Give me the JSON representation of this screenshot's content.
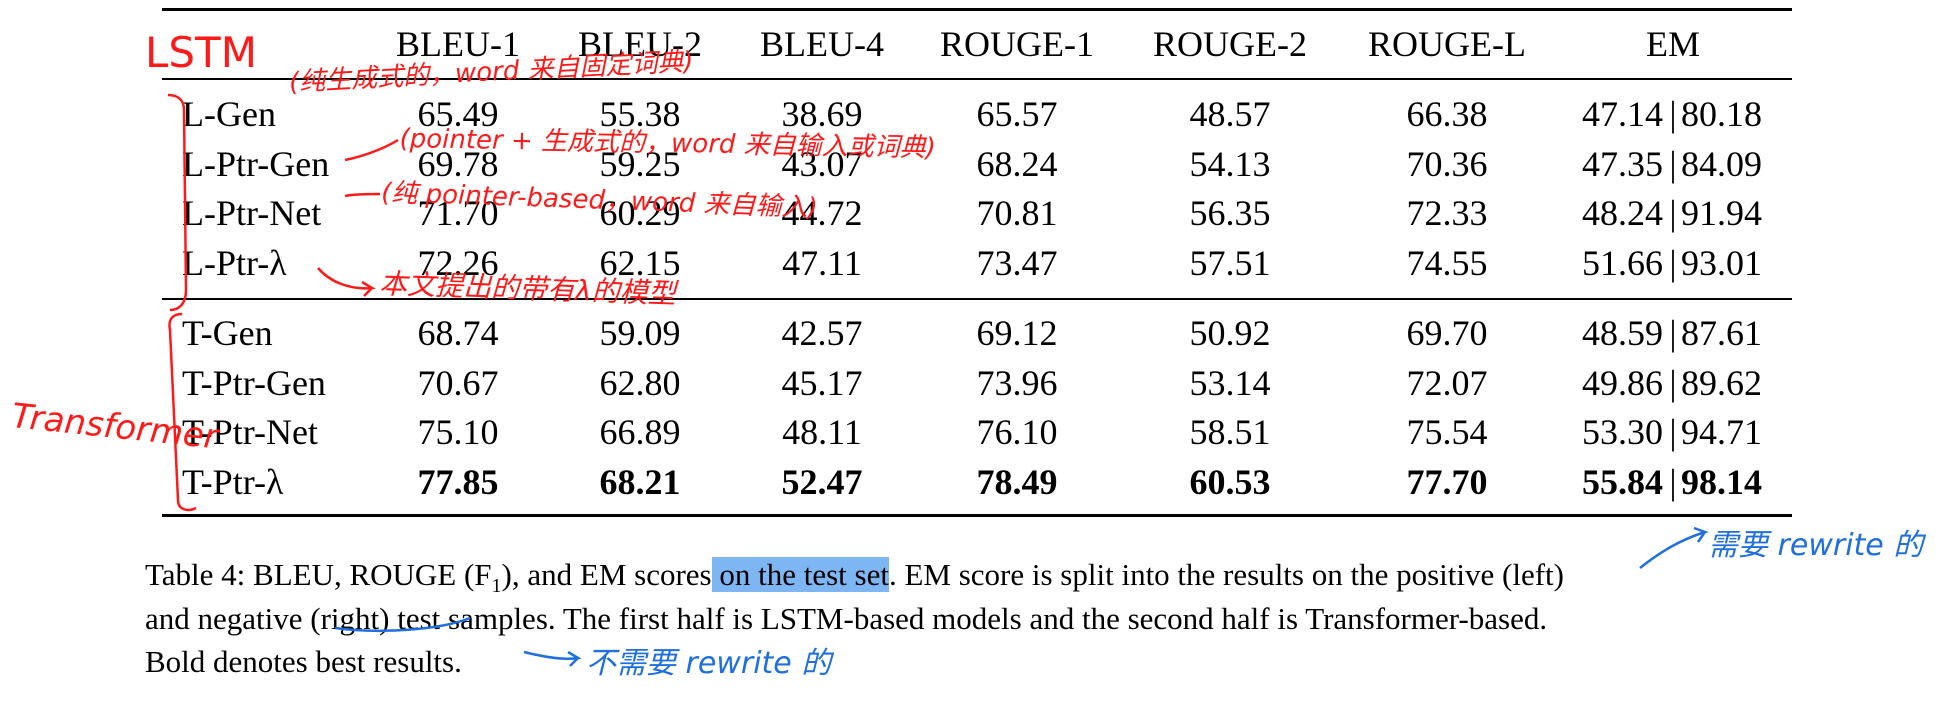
{
  "table": {
    "headers": [
      "",
      "BLEU-1",
      "BLEU-2",
      "BLEU-4",
      "ROUGE-1",
      "ROUGE-2",
      "ROUGE-L",
      "EM"
    ],
    "groups": [
      {
        "name": "LSTM",
        "rows": [
          {
            "model": "L-Gen",
            "values": [
              "65.49",
              "55.38",
              "38.69",
              "65.57",
              "48.57",
              "66.38"
            ],
            "em_pos": "47.14",
            "em_neg": "80.18",
            "bold": false
          },
          {
            "model": "L-Ptr-Gen",
            "values": [
              "69.78",
              "59.25",
              "43.07",
              "68.24",
              "54.13",
              "70.36"
            ],
            "em_pos": "47.35",
            "em_neg": "84.09",
            "bold": false
          },
          {
            "model": "L-Ptr-Net",
            "values": [
              "71.70",
              "60.29",
              "44.72",
              "70.81",
              "56.35",
              "72.33"
            ],
            "em_pos": "48.24",
            "em_neg": "91.94",
            "bold": false
          },
          {
            "model": "L-Ptr-λ",
            "values": [
              "72.26",
              "62.15",
              "47.11",
              "73.47",
              "57.51",
              "74.55"
            ],
            "em_pos": "51.66",
            "em_neg": "93.01",
            "bold": false
          }
        ]
      },
      {
        "name": "Transformer",
        "rows": [
          {
            "model": "T-Gen",
            "values": [
              "68.74",
              "59.09",
              "42.57",
              "69.12",
              "50.92",
              "69.70"
            ],
            "em_pos": "48.59",
            "em_neg": "87.61",
            "bold": false
          },
          {
            "model": "T-Ptr-Gen",
            "values": [
              "70.67",
              "62.80",
              "45.17",
              "73.96",
              "53.14",
              "72.07"
            ],
            "em_pos": "49.86",
            "em_neg": "89.62",
            "bold": false
          },
          {
            "model": "T-Ptr-Net",
            "values": [
              "75.10",
              "66.89",
              "48.11",
              "76.10",
              "58.51",
              "75.54"
            ],
            "em_pos": "53.30",
            "em_neg": "94.71",
            "bold": false
          },
          {
            "model": "T-Ptr-λ",
            "values": [
              "77.85",
              "68.21",
              "52.47",
              "78.49",
              "60.53",
              "77.70"
            ],
            "em_pos": "55.84",
            "em_neg": "98.14",
            "bold": true
          }
        ]
      }
    ]
  },
  "caption": {
    "line1_pre": "Table 4: BLEU, ROUGE (F",
    "line1_sub": "1",
    "line1_mid": "), and EM scores",
    "line1_highlight": " on the test set",
    "line1_post": ". EM score is split into the results on the positive (left)",
    "line2": "and negative (right) test samples. The first half is LSTM-based models and the second half is Transformer-based.",
    "line3": "Bold denotes best results."
  },
  "annotations": {
    "red_lstm": "LSTM",
    "red_transformer": "Transformer",
    "red_note_gen": "(纯生成式的，word 来自固定词典)",
    "red_note_ptr_gen": "(pointer + 生成式的，word 来自输入或词典)",
    "red_note_ptr_net": "(纯 pointer-based，word 来自输入)",
    "red_note_ptr_lambda": "本文提出的带有λ的模型",
    "blue_note_rewrite": "需要 rewrite 的",
    "blue_note_no_rewrite": "不需要 rewrite 的",
    "red_color": "#ff1a1a",
    "blue_color": "#1f6fe0",
    "highlight_color": "#7eb6f3"
  }
}
